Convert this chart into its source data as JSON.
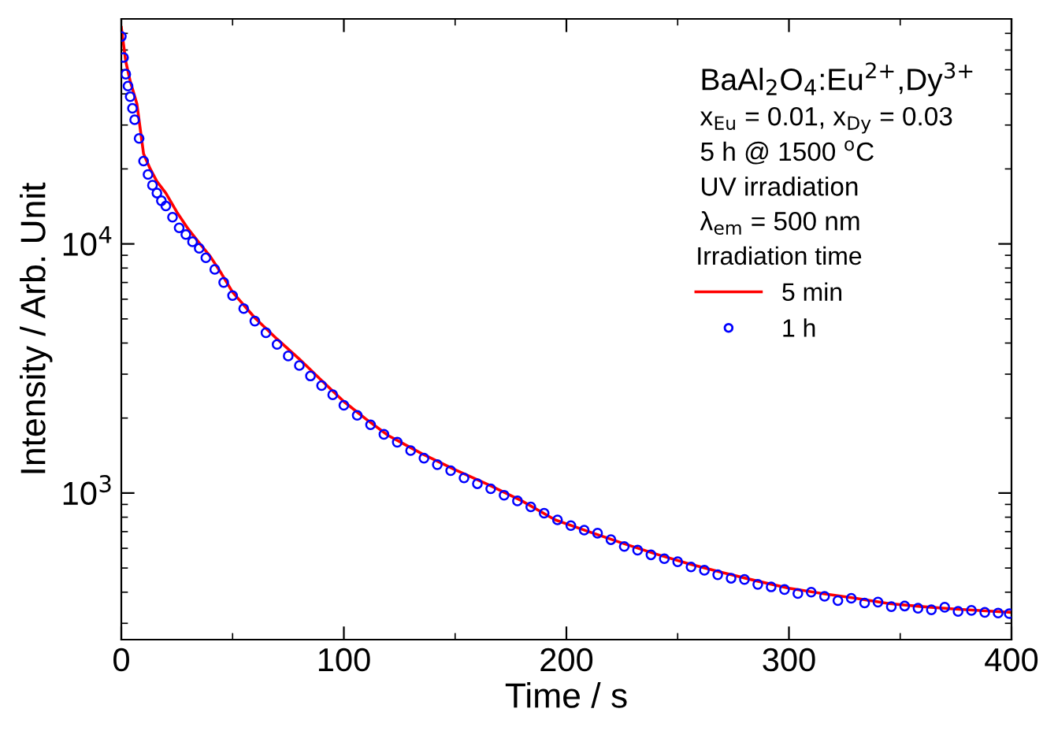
{
  "chart_data": {
    "type": "line",
    "xlabel": "Time / s",
    "ylabel": "Intensity / Arb. Unit",
    "legend_title": "Irradiation time",
    "legend": "top right",
    "log": "y",
    "grid": false,
    "xlim": [
      0,
      400
    ],
    "xticks": [
      0,
      100,
      200,
      300,
      400
    ],
    "ylim": [
      258,
      80000
    ],
    "yticks": [
      {
        "value": 1000,
        "label": "10$^{3}$"
      },
      {
        "value": 10000,
        "label": "10$^{4}$"
      }
    ],
    "annotations": [
      "BaAl$_{2}$O$_{4}$:Eu$^{2+}$,Dy$^{3+}$",
      "x$_{Eu}$ = 0.01, x$_{Dy}$ = 0.03",
      "5 h @ 1500 $^{o}$C",
      "UV irradiation",
      "λ$_{em}$ = 500 nm"
    ],
    "series": [
      {
        "name": "5 min",
        "color": "#ff0000",
        "marker": "none",
        "line_style": "solid",
        "x": [
          0,
          2,
          4,
          7,
          10,
          13,
          16,
          20,
          25,
          30,
          35,
          40,
          45,
          50,
          60,
          70,
          80,
          90,
          100,
          110,
          120,
          135,
          150,
          165,
          180,
          195,
          210,
          225,
          240,
          255,
          270,
          285,
          300,
          315,
          330,
          345,
          360,
          375,
          390,
          400
        ],
        "values": [
          74000,
          54000,
          45000,
          36500,
          23000,
          20000,
          17800,
          16000,
          13400,
          11500,
          10100,
          8900,
          7600,
          6400,
          5050,
          4150,
          3450,
          2830,
          2330,
          1980,
          1700,
          1440,
          1240,
          1080,
          930,
          780,
          700,
          630,
          570,
          520,
          480,
          445,
          415,
          395,
          378,
          360,
          350,
          342,
          336,
          332
        ]
      },
      {
        "name": "1 h",
        "color": "#0000ff",
        "type": "scatter",
        "marker": "circle",
        "x": [
          0,
          1,
          2,
          3,
          4,
          5,
          6,
          8,
          10,
          12,
          14,
          16,
          18,
          20,
          23,
          26,
          29,
          32,
          35,
          38,
          42,
          46,
          50,
          55,
          60,
          65,
          70,
          75,
          80,
          85,
          90,
          95,
          100,
          106,
          112,
          118,
          124,
          130,
          136,
          142,
          148,
          154,
          160,
          166,
          172,
          178,
          184,
          190,
          196,
          202,
          208,
          214,
          220,
          226,
          232,
          238,
          244,
          250,
          256,
          262,
          268,
          274,
          280,
          286,
          292,
          298,
          304,
          310,
          316,
          322,
          328,
          334,
          340,
          346,
          352,
          358,
          364,
          370,
          376,
          382,
          388,
          394,
          399
        ],
        "values": [
          68000,
          56000,
          48000,
          43000,
          39000,
          35000,
          31500,
          26500,
          21500,
          19000,
          17200,
          16000,
          14900,
          14200,
          12800,
          11600,
          10900,
          10200,
          9600,
          8800,
          7900,
          7000,
          6200,
          5500,
          4900,
          4400,
          3950,
          3550,
          3250,
          2950,
          2700,
          2480,
          2250,
          2050,
          1880,
          1720,
          1600,
          1480,
          1380,
          1300,
          1230,
          1150,
          1090,
          1040,
          980,
          930,
          880,
          830,
          780,
          740,
          710,
          690,
          650,
          610,
          590,
          565,
          545,
          530,
          505,
          490,
          470,
          455,
          450,
          430,
          420,
          410,
          395,
          400,
          385,
          370,
          378,
          362,
          365,
          350,
          352,
          345,
          340,
          348,
          335,
          338,
          332,
          330,
          328
        ]
      }
    ]
  }
}
